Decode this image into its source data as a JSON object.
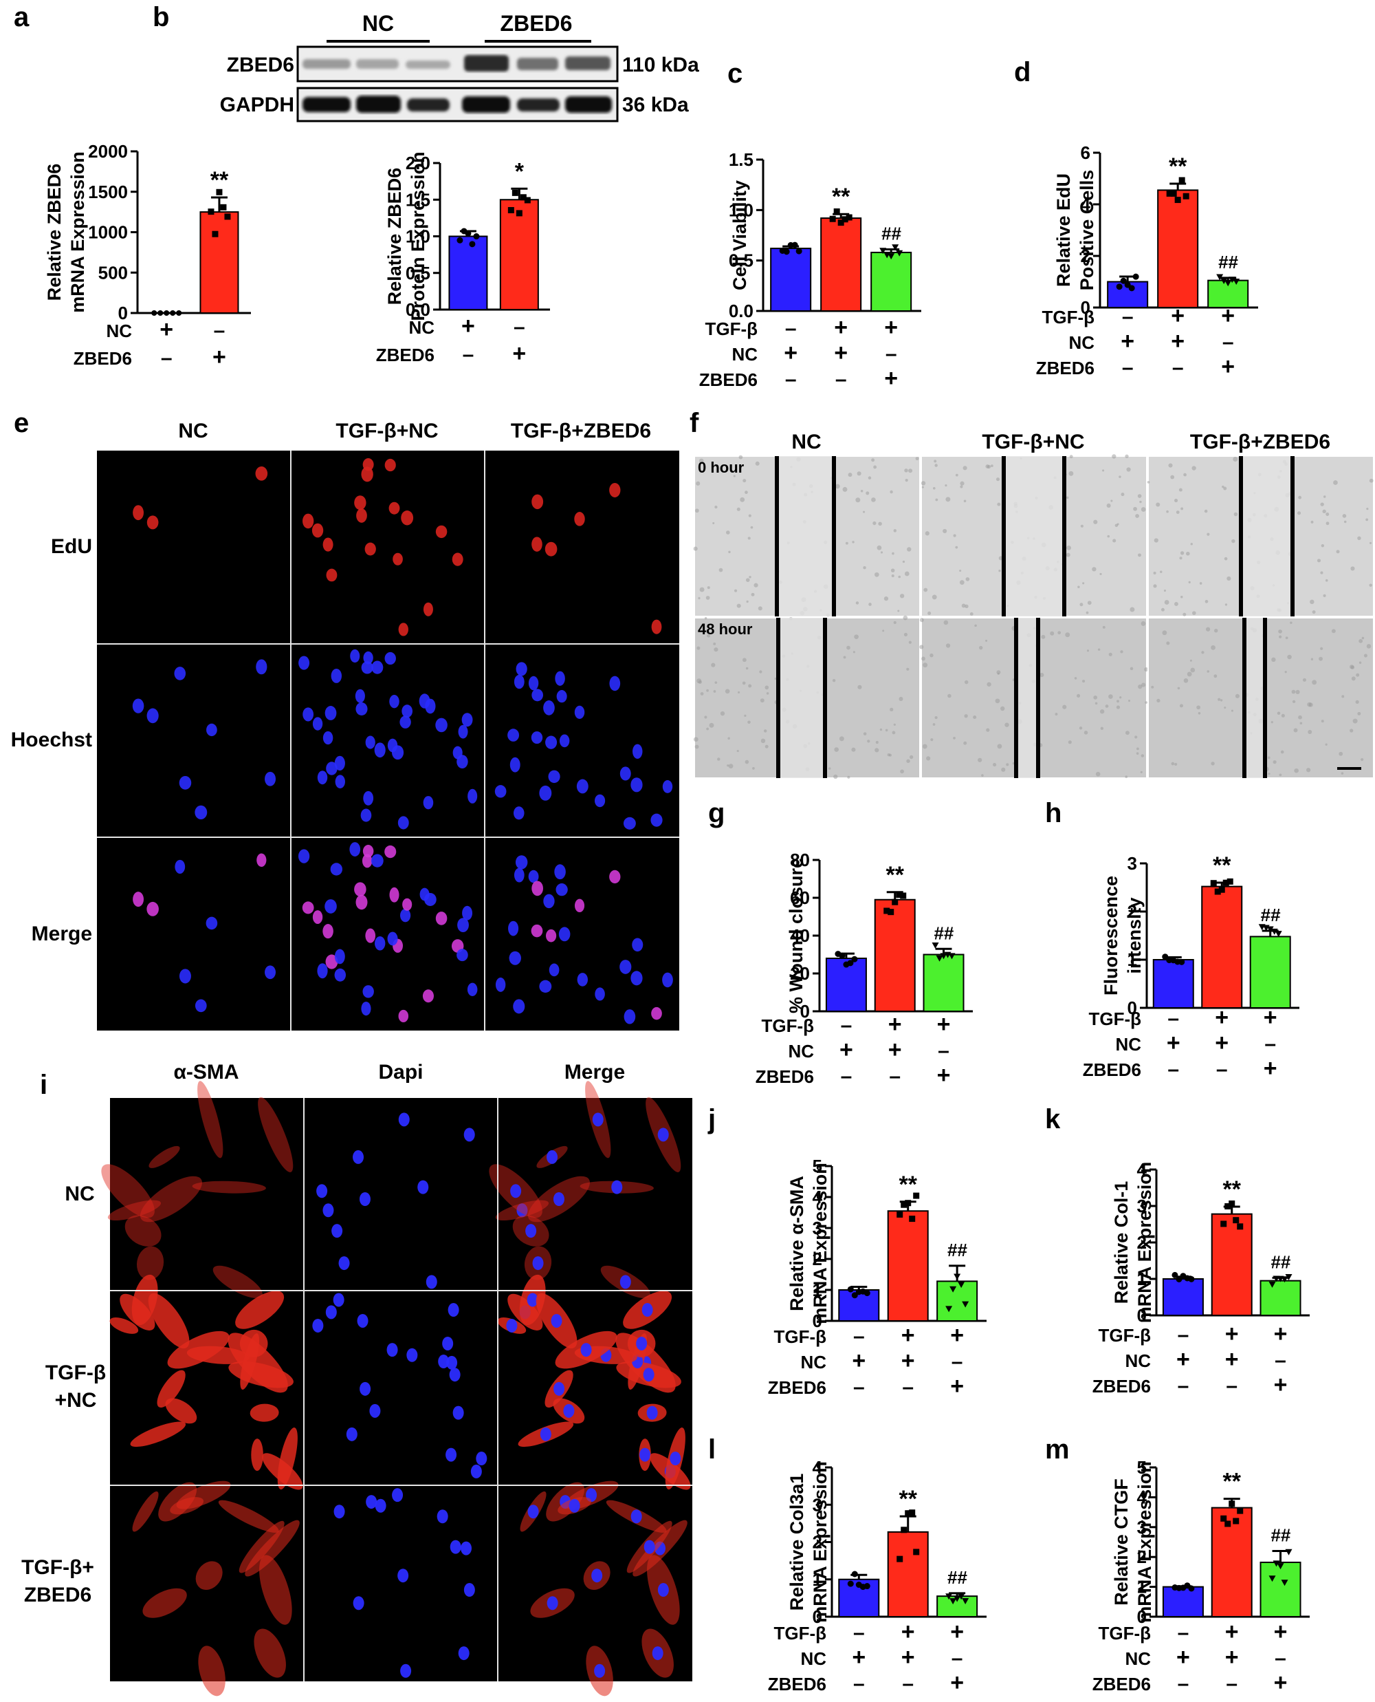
{
  "panels": {
    "a": "a",
    "b": "b",
    "c": "c",
    "d": "d",
    "e": "e",
    "f": "f",
    "g": "g",
    "h": "h",
    "i": "i",
    "j": "j",
    "k": "k",
    "l": "l",
    "m": "m"
  },
  "colors": {
    "blue": "#2b1fff",
    "red": "#ff2a1a",
    "green": "#4cf02e"
  },
  "western_blot": {
    "group_nc": "NC",
    "group_zbed6": "ZBED6",
    "row1_label": "ZBED6",
    "row2_label": "GAPDH",
    "row1_size": "110 kDa",
    "row2_size": "36 kDa"
  },
  "conditions": {
    "tgf": "TGF-β",
    "nc": "NC",
    "zbed6": "ZBED6",
    "plus": "+",
    "minus": "–"
  },
  "panel_e": {
    "cols": [
      "NC",
      "TGF-β+NC",
      "TGF-β+ZBED6"
    ],
    "rows": [
      "EdU",
      "Hoechst",
      "Merge"
    ]
  },
  "panel_f": {
    "cols": [
      "NC",
      "TGF-β+NC",
      "TGF-β+ZBED6"
    ],
    "rows": [
      "0 hour",
      "48 hour"
    ]
  },
  "panel_i": {
    "cols": [
      "α-SMA",
      "Dapi",
      "Merge"
    ],
    "rows": [
      [
        "NC"
      ],
      [
        "TGF-β",
        "+NC"
      ],
      [
        "TGF-β+",
        "ZBED6"
      ]
    ]
  },
  "chart_data": [
    {
      "id": "a",
      "type": "bar",
      "ylabel": [
        "Relative ZBED6",
        "mRNA Expression"
      ],
      "ylim": [
        0,
        2000
      ],
      "yticks": [
        "0",
        "500",
        "1000",
        "1500",
        "2000"
      ],
      "conditions": [
        [
          "NC",
          "+",
          "–"
        ],
        [
          "ZBED6",
          "–",
          "+"
        ]
      ],
      "bars": [
        {
          "value": 0,
          "err": 0,
          "color": "blue",
          "annot": ""
        },
        {
          "value": 1250,
          "err": 180,
          "color": "red",
          "annot": "**"
        }
      ]
    },
    {
      "id": "b",
      "type": "bar",
      "ylabel": [
        "Relative ZBED6",
        "Protein Expression"
      ],
      "ylim": [
        0,
        2.0
      ],
      "yticks": [
        "0.0",
        "0.5",
        "1.0",
        "1.5",
        "2.0"
      ],
      "conditions": [
        [
          "NC",
          "+",
          "–"
        ],
        [
          "ZBED6",
          "–",
          "+"
        ]
      ],
      "bars": [
        {
          "value": 1.0,
          "err": 0.07,
          "color": "blue",
          "annot": ""
        },
        {
          "value": 1.5,
          "err": 0.15,
          "color": "red",
          "annot": "*"
        }
      ]
    },
    {
      "id": "c",
      "type": "bar",
      "ylabel": [
        "Cell Viability"
      ],
      "ylim": [
        0,
        1.5
      ],
      "yticks": [
        "0.0",
        "0.5",
        "1.0",
        "1.5"
      ],
      "conditions": [
        [
          "TGF-β",
          "–",
          "+",
          "+"
        ],
        [
          "NC",
          "+",
          "+",
          "–"
        ],
        [
          "ZBED6",
          "–",
          "–",
          "+"
        ]
      ],
      "bars": [
        {
          "value": 0.62,
          "err": 0.02,
          "color": "blue",
          "annot": ""
        },
        {
          "value": 0.92,
          "err": 0.04,
          "color": "red",
          "annot": "**"
        },
        {
          "value": 0.58,
          "err": 0.03,
          "color": "green",
          "annot": "##"
        }
      ]
    },
    {
      "id": "d",
      "type": "bar",
      "ylabel": [
        "Relative EdU",
        "Positive Cells"
      ],
      "ylim": [
        0,
        6
      ],
      "yticks": [
        "0",
        "2",
        "4",
        "6"
      ],
      "conditions": [
        [
          "TGF-β",
          "–",
          "+",
          "+"
        ],
        [
          "NC",
          "+",
          "+",
          "–"
        ],
        [
          "ZBED6",
          "–",
          "–",
          "+"
        ]
      ],
      "bars": [
        {
          "value": 1.0,
          "err": 0.2,
          "color": "blue",
          "annot": ""
        },
        {
          "value": 4.55,
          "err": 0.25,
          "color": "red",
          "annot": "**"
        },
        {
          "value": 1.05,
          "err": 0.1,
          "color": "green",
          "annot": "##"
        }
      ]
    },
    {
      "id": "g",
      "type": "bar",
      "ylabel": [
        "% Wound closure"
      ],
      "ylim": [
        0,
        80
      ],
      "yticks": [
        "0",
        "20",
        "40",
        "60",
        "80"
      ],
      "conditions": [
        [
          "TGF-β",
          "–",
          "+",
          "+"
        ],
        [
          "NC",
          "+",
          "+",
          "–"
        ],
        [
          "ZBED6",
          "–",
          "–",
          "+"
        ]
      ],
      "bars": [
        {
          "value": 28,
          "err": 2.5,
          "color": "blue",
          "annot": ""
        },
        {
          "value": 59,
          "err": 4,
          "color": "red",
          "annot": "**"
        },
        {
          "value": 30,
          "err": 3,
          "color": "green",
          "annot": "##"
        }
      ]
    },
    {
      "id": "h",
      "type": "bar",
      "ylabel": [
        "Fluorescence",
        "intensity"
      ],
      "ylim": [
        0,
        3
      ],
      "yticks": [
        "0",
        "1",
        "2",
        "3"
      ],
      "conditions": [
        [
          "TGF-β",
          "–",
          "+",
          "+"
        ],
        [
          "NC",
          "+",
          "+",
          "–"
        ],
        [
          "ZBED6",
          "–",
          "–",
          "+"
        ]
      ],
      "bars": [
        {
          "value": 1.0,
          "err": 0.05,
          "color": "blue",
          "annot": ""
        },
        {
          "value": 2.52,
          "err": 0.08,
          "color": "red",
          "annot": "**"
        },
        {
          "value": 1.48,
          "err": 0.12,
          "color": "green",
          "annot": "##"
        }
      ]
    },
    {
      "id": "j",
      "type": "bar",
      "ylabel": [
        "Relative α-SMA",
        "mRNA Expression"
      ],
      "ylim": [
        0,
        5
      ],
      "yticks": [
        "0",
        "1",
        "2",
        "3",
        "4",
        "5"
      ],
      "conditions": [
        [
          "TGF-β",
          "–",
          "+",
          "+"
        ],
        [
          "NC",
          "+",
          "+",
          "–"
        ],
        [
          "ZBED6",
          "–",
          "–",
          "+"
        ]
      ],
      "bars": [
        {
          "value": 1.0,
          "err": 0.1,
          "color": "blue",
          "annot": ""
        },
        {
          "value": 3.55,
          "err": 0.3,
          "color": "red",
          "annot": "**"
        },
        {
          "value": 1.28,
          "err": 0.5,
          "color": "green",
          "annot": "##"
        }
      ]
    },
    {
      "id": "k",
      "type": "bar",
      "ylabel": [
        "Relative Col-1",
        "mRNA Expression"
      ],
      "ylim": [
        0,
        4
      ],
      "yticks": [
        "0",
        "1",
        "2",
        "3",
        "4"
      ],
      "conditions": [
        [
          "TGF-β",
          "–",
          "+",
          "+"
        ],
        [
          "NC",
          "+",
          "+",
          "–"
        ],
        [
          "ZBED6",
          "–",
          "–",
          "+"
        ]
      ],
      "bars": [
        {
          "value": 1.0,
          "err": 0.06,
          "color": "blue",
          "annot": ""
        },
        {
          "value": 2.78,
          "err": 0.2,
          "color": "red",
          "annot": "**"
        },
        {
          "value": 0.95,
          "err": 0.08,
          "color": "green",
          "annot": "##"
        }
      ]
    },
    {
      "id": "l",
      "type": "bar",
      "ylabel": [
        "Relative Col3a1",
        "mRNA Expression"
      ],
      "ylim": [
        0,
        4
      ],
      "yticks": [
        "0",
        "1",
        "2",
        "3",
        "4"
      ],
      "conditions": [
        [
          "TGF-β",
          "–",
          "+",
          "+"
        ],
        [
          "NC",
          "+",
          "+",
          "–"
        ],
        [
          "ZBED6",
          "–",
          "–",
          "+"
        ]
      ],
      "bars": [
        {
          "value": 1.0,
          "err": 0.12,
          "color": "blue",
          "annot": ""
        },
        {
          "value": 2.27,
          "err": 0.42,
          "color": "red",
          "annot": "**"
        },
        {
          "value": 0.55,
          "err": 0.08,
          "color": "green",
          "annot": "##"
        }
      ]
    },
    {
      "id": "m",
      "type": "bar",
      "ylabel": [
        "Relative CTGF",
        "mRNA Expression"
      ],
      "ylim": [
        0,
        5
      ],
      "yticks": [
        "0",
        "1",
        "2",
        "3",
        "4",
        "5"
      ],
      "conditions": [
        [
          "TGF-β",
          "–",
          "+",
          "+"
        ],
        [
          "NC",
          "+",
          "+",
          "–"
        ],
        [
          "ZBED6",
          "–",
          "–",
          "+"
        ]
      ],
      "bars": [
        {
          "value": 1.0,
          "err": 0.02,
          "color": "blue",
          "annot": ""
        },
        {
          "value": 3.65,
          "err": 0.3,
          "color": "red",
          "annot": "**"
        },
        {
          "value": 1.82,
          "err": 0.38,
          "color": "green",
          "annot": "##"
        }
      ]
    }
  ]
}
